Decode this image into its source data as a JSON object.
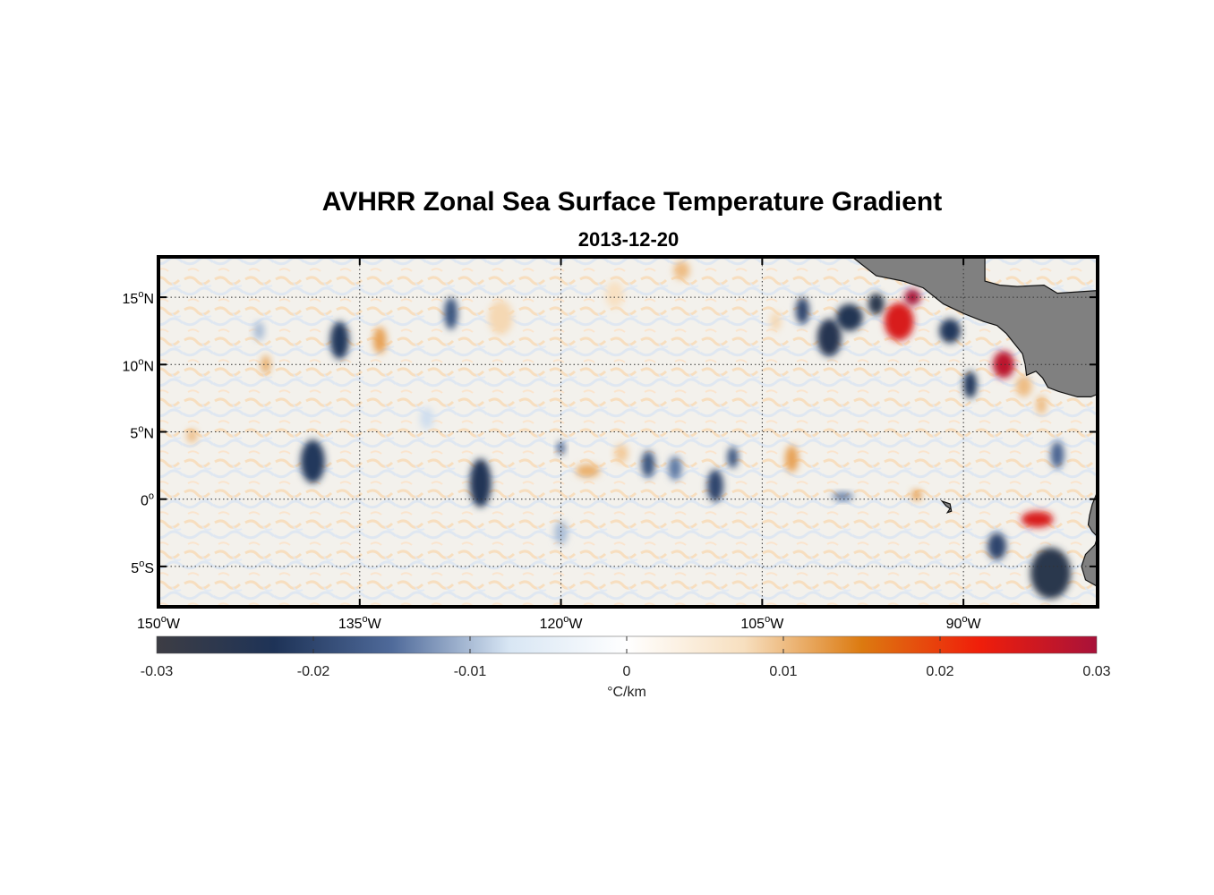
{
  "title": "AVHRR Zonal Sea Surface Temperature Gradient",
  "subtitle": "2013-12-20",
  "map": {
    "lon_range": [
      -150,
      -80
    ],
    "lat_range": [
      -8,
      18
    ],
    "lon_ticks": [
      {
        "value": -150,
        "num": "150",
        "sup": "o",
        "hemi": "W"
      },
      {
        "value": -135,
        "num": "135",
        "sup": "o",
        "hemi": "W"
      },
      {
        "value": -120,
        "num": "120",
        "sup": "o",
        "hemi": "W"
      },
      {
        "value": -105,
        "num": "105",
        "sup": "o",
        "hemi": "W"
      },
      {
        "value": -90,
        "num": "90",
        "sup": "o",
        "hemi": "W"
      }
    ],
    "lat_ticks": [
      {
        "value": 15,
        "num": "15",
        "sup": "o",
        "hemi": "N"
      },
      {
        "value": 10,
        "num": "10",
        "sup": "o",
        "hemi": "N"
      },
      {
        "value": 5,
        "num": "5",
        "sup": "o",
        "hemi": "N"
      },
      {
        "value": 0,
        "num": "0",
        "sup": "o",
        "hemi": ""
      },
      {
        "value": -5,
        "num": "5",
        "sup": "o",
        "hemi": "S"
      }
    ],
    "land_color": "#808080",
    "grid": "dotted"
  },
  "features": [
    {
      "lon": -136.5,
      "lat": 11.8,
      "v": -0.022,
      "rx": 0.7,
      "ry": 1.4
    },
    {
      "lon": -133.5,
      "lat": 11.8,
      "v": 0.012,
      "rx": 0.5,
      "ry": 1.0
    },
    {
      "lon": -128.2,
      "lat": 13.8,
      "v": -0.018,
      "rx": 0.5,
      "ry": 1.2
    },
    {
      "lon": -124.5,
      "lat": 13.5,
      "v": 0.008,
      "rx": 0.9,
      "ry": 1.3
    },
    {
      "lon": -116,
      "lat": 15.2,
      "v": 0.007,
      "rx": 0.7,
      "ry": 1.0
    },
    {
      "lon": -111,
      "lat": 17,
      "v": 0.01,
      "rx": 0.6,
      "ry": 0.7
    },
    {
      "lon": -142,
      "lat": 10,
      "v": 0.011,
      "rx": 0.35,
      "ry": 0.7
    },
    {
      "lon": -147.5,
      "lat": 4.7,
      "v": 0.01,
      "rx": 0.4,
      "ry": 0.5
    },
    {
      "lon": -138.5,
      "lat": 2.8,
      "v": -0.022,
      "rx": 0.9,
      "ry": 1.6
    },
    {
      "lon": -126,
      "lat": 1.2,
      "v": -0.023,
      "rx": 0.8,
      "ry": 1.8
    },
    {
      "lon": -120,
      "lat": 3.8,
      "v": -0.016,
      "rx": 0.3,
      "ry": 0.5
    },
    {
      "lon": -118,
      "lat": 2.1,
      "v": 0.011,
      "rx": 0.9,
      "ry": 0.5
    },
    {
      "lon": -115.5,
      "lat": 3.4,
      "v": 0.009,
      "rx": 0.5,
      "ry": 0.7
    },
    {
      "lon": -113.5,
      "lat": 2.6,
      "v": -0.018,
      "rx": 0.5,
      "ry": 1.0
    },
    {
      "lon": -111.5,
      "lat": 2.3,
      "v": -0.014,
      "rx": 0.5,
      "ry": 0.9
    },
    {
      "lon": -108.5,
      "lat": 1.0,
      "v": -0.02,
      "rx": 0.6,
      "ry": 1.2
    },
    {
      "lon": -107.2,
      "lat": 3.1,
      "v": -0.018,
      "rx": 0.4,
      "ry": 0.8
    },
    {
      "lon": -102.8,
      "lat": 3.0,
      "v": 0.012,
      "rx": 0.5,
      "ry": 1.0
    },
    {
      "lon": -104,
      "lat": 13.2,
      "v": 0.008,
      "rx": 0.4,
      "ry": 0.7
    },
    {
      "lon": -102,
      "lat": 14.0,
      "v": -0.02,
      "rx": 0.5,
      "ry": 1.0
    },
    {
      "lon": -100,
      "lat": 12.0,
      "v": -0.025,
      "rx": 0.9,
      "ry": 1.4
    },
    {
      "lon": -98.5,
      "lat": 13.5,
      "v": -0.024,
      "rx": 1.0,
      "ry": 1.0
    },
    {
      "lon": -96.5,
      "lat": 14.5,
      "v": -0.026,
      "rx": 0.6,
      "ry": 0.8
    },
    {
      "lon": -94.8,
      "lat": 13.2,
      "v": 0.025,
      "rx": 1.1,
      "ry": 1.4
    },
    {
      "lon": -93.8,
      "lat": 15.0,
      "v": 0.03,
      "rx": 0.6,
      "ry": 0.6
    },
    {
      "lon": -91,
      "lat": 12.5,
      "v": -0.022,
      "rx": 0.8,
      "ry": 0.9
    },
    {
      "lon": -89.5,
      "lat": 8.5,
      "v": -0.022,
      "rx": 0.5,
      "ry": 1.0
    },
    {
      "lon": -87.0,
      "lat": 10.0,
      "v": 0.028,
      "rx": 0.8,
      "ry": 1.0
    },
    {
      "lon": -85.5,
      "lat": 8.4,
      "v": 0.01,
      "rx": 0.6,
      "ry": 0.8
    },
    {
      "lon": -84.2,
      "lat": 7.0,
      "v": 0.01,
      "rx": 0.4,
      "ry": 0.7
    },
    {
      "lon": -83,
      "lat": 3.3,
      "v": -0.016,
      "rx": 0.5,
      "ry": 1.0
    },
    {
      "lon": -93.5,
      "lat": 0.3,
      "v": 0.012,
      "rx": 0.4,
      "ry": 0.4
    },
    {
      "lon": -84.5,
      "lat": -1.5,
      "v": 0.025,
      "rx": 1.2,
      "ry": 0.6
    },
    {
      "lon": -83.5,
      "lat": -5.5,
      "v": -0.026,
      "rx": 1.5,
      "ry": 1.9
    },
    {
      "lon": -87.5,
      "lat": -3.5,
      "v": -0.02,
      "rx": 0.7,
      "ry": 1.0
    },
    {
      "lon": -99,
      "lat": 0.2,
      "v": -0.014,
      "rx": 0.8,
      "ry": 0.3
    },
    {
      "lon": -142.5,
      "lat": 12.5,
      "v": -0.01,
      "rx": 0.4,
      "ry": 0.7
    },
    {
      "lon": -130,
      "lat": 6.0,
      "v": -0.008,
      "rx": 0.5,
      "ry": 0.8
    },
    {
      "lon": -120,
      "lat": -2.5,
      "v": -0.01,
      "rx": 0.5,
      "ry": 0.9
    }
  ],
  "land": [
    {
      "name": "central-america",
      "points": [
        [
          -98.3,
          18
        ],
        [
          -96.5,
          16.6
        ],
        [
          -94.5,
          16.2
        ],
        [
          -93,
          15.7
        ],
        [
          -91.5,
          14.5
        ],
        [
          -90,
          13.8
        ],
        [
          -88.5,
          13.2
        ],
        [
          -87.5,
          12.9
        ],
        [
          -86.8,
          12.3
        ],
        [
          -86,
          11.3
        ],
        [
          -85.6,
          10.8
        ],
        [
          -85.4,
          10.0
        ],
        [
          -85.3,
          9.2
        ],
        [
          -84.6,
          9.5
        ],
        [
          -84.1,
          9.0
        ],
        [
          -83.7,
          8.3
        ],
        [
          -82.9,
          8.0
        ],
        [
          -81.5,
          7.6
        ],
        [
          -80.5,
          7.6
        ],
        [
          -80,
          7.8
        ],
        [
          -80,
          15.5
        ],
        [
          -83,
          15.3
        ],
        [
          -84,
          15.9
        ],
        [
          -86,
          15.8
        ],
        [
          -87.3,
          15.9
        ],
        [
          -88.4,
          16.2
        ],
        [
          -88.4,
          18
        ]
      ]
    },
    {
      "name": "south-america",
      "points": [
        [
          -80,
          0.6
        ],
        [
          -80.4,
          -0.4
        ],
        [
          -80.6,
          -1.2
        ],
        [
          -80.7,
          -1.9
        ],
        [
          -80.4,
          -2.4
        ],
        [
          -80.0,
          -2.8
        ],
        [
          -80.2,
          -3.4
        ],
        [
          -80.9,
          -4.1
        ],
        [
          -81.2,
          -5.0
        ],
        [
          -80.9,
          -6.0
        ],
        [
          -80,
          -6.5
        ]
      ]
    },
    {
      "name": "galapagos",
      "points": [
        [
          -91.6,
          -0.15
        ],
        [
          -91.0,
          -0.35
        ],
        [
          -90.9,
          -0.9
        ],
        [
          -91.2,
          -1.0
        ],
        [
          -91.0,
          -0.7
        ],
        [
          -91.3,
          -0.5
        ]
      ]
    }
  ],
  "colorbar": {
    "min": -0.03,
    "max": 0.03,
    "ticks": [
      "-0.03",
      "-0.02",
      "-0.01",
      "0",
      "0.01",
      "0.02",
      "0.03"
    ],
    "label": "°C/km",
    "stops": [
      "#3d3d44",
      "#1e3357",
      "#4f6a9a",
      "#d8e6f4",
      "#ffffff",
      "#f7dfbf",
      "#dc7a10",
      "#f01e0a",
      "#a8123a"
    ]
  }
}
